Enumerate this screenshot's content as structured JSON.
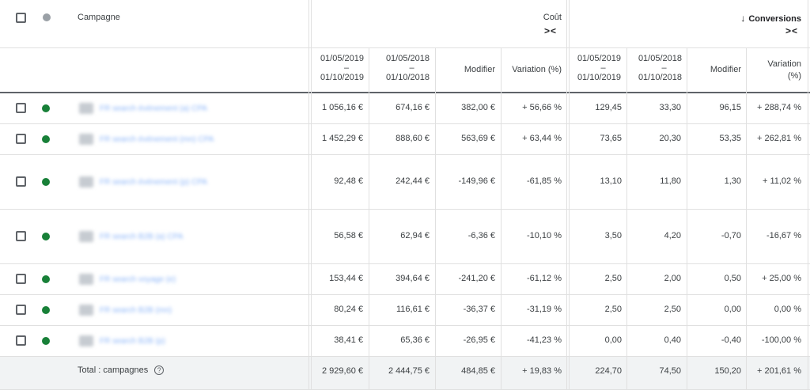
{
  "header": {
    "campaign_label": "Campagne",
    "cost_label": "Coût",
    "conversions_label": "Conversions",
    "collapse_glyph": "><",
    "sort_glyph": "↓",
    "columns": {
      "cost_2019": [
        "01/05/2019",
        "–",
        "01/10/2019"
      ],
      "cost_2018": [
        "01/05/2018",
        "–",
        "01/10/2018"
      ],
      "cost_modifier": "Modifier",
      "cost_variation": "Variation (%)",
      "conv_2019": [
        "01/05/2019",
        "–",
        "01/10/2019"
      ],
      "conv_2018": [
        "01/05/2018",
        "–",
        "01/10/2018"
      ],
      "conv_modifier": "Modifier",
      "conv_variation": [
        "Variation",
        "(%)"
      ]
    }
  },
  "rows": [
    {
      "name": "FR search événement (a) CPA",
      "c19": "1 056,16 €",
      "c18": "674,16 €",
      "cmod": "382,00 €",
      "cvar": "+ 56,66 %",
      "v19": "129,45",
      "v18": "33,30",
      "vmod": "96,15",
      "vvar": "+ 288,74 %"
    },
    {
      "name": "FR search événement (mn) CPA",
      "c19": "1 452,29 €",
      "c18": "888,60 €",
      "cmod": "563,69 €",
      "cvar": "+ 63,44 %",
      "v19": "73,65",
      "v18": "20,30",
      "vmod": "53,35",
      "vvar": "+ 262,81 %"
    },
    {
      "name": "FR search événement (p) CPA",
      "c19": "92,48 €",
      "c18": "242,44 €",
      "cmod": "-149,96 €",
      "cvar": "-61,85 %",
      "v19": "13,10",
      "v18": "11,80",
      "vmod": "1,30",
      "vvar": "+ 11,02 %"
    },
    {
      "name": "FR search B2B (a) CPA",
      "c19": "56,58 €",
      "c18": "62,94 €",
      "cmod": "-6,36 €",
      "cvar": "-10,10 %",
      "v19": "3,50",
      "v18": "4,20",
      "vmod": "-0,70",
      "vvar": "-16,67 %"
    },
    {
      "name": "FR search voyage (e)",
      "c19": "153,44 €",
      "c18": "394,64 €",
      "cmod": "-241,20 €",
      "cvar": "-61,12 %",
      "v19": "2,50",
      "v18": "2,00",
      "vmod": "0,50",
      "vvar": "+ 25,00 %"
    },
    {
      "name": "FR search B2B (mn)",
      "c19": "80,24 €",
      "c18": "116,61 €",
      "cmod": "-36,37 €",
      "cvar": "-31,19 %",
      "v19": "2,50",
      "v18": "2,50",
      "vmod": "0,00",
      "vvar": "0,00 %"
    },
    {
      "name": "FR search B2B (p)",
      "c19": "38,41 €",
      "c18": "65,36 €",
      "cmod": "-26,95 €",
      "cvar": "-41,23 %",
      "v19": "0,00",
      "v18": "0,40",
      "vmod": "-0,40",
      "vvar": "-100,00 %"
    }
  ],
  "total": {
    "label": "Total : campagnes",
    "help_glyph": "?",
    "c19": "2 929,60 €",
    "c18": "2 444,75 €",
    "cmod": "484,85 €",
    "cvar": "+ 19,83 %",
    "v19": "224,70",
    "v18": "74,50",
    "vmod": "150,20",
    "vvar": "+ 201,61 %"
  },
  "colors": {
    "status_enabled": "#188038",
    "status_header": "#9aa0a6",
    "total_bg": "#f1f3f4",
    "link": "#8ab4f8"
  }
}
